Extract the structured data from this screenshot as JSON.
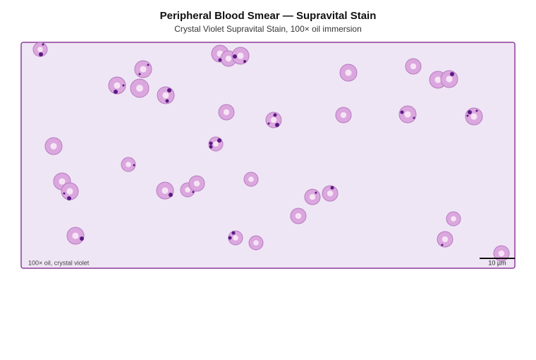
{
  "header": {
    "title": "Peripheral Blood Smear — Supravital Stain",
    "subtitle": "Crystal Violet Supravital Stain, 100× oil immersion"
  },
  "panel": {
    "caption": "100× oil, crystal violet",
    "scale_bar_label": "10 µm"
  }
}
